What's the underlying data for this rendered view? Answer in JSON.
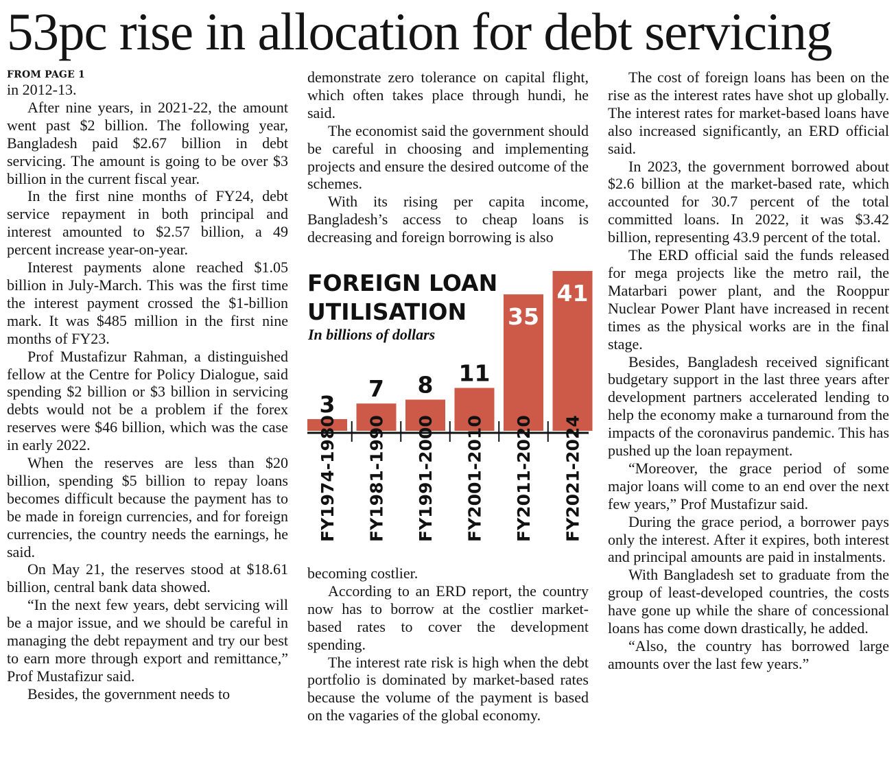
{
  "headline": "53pc rise in allocation for debt servicing",
  "kicker": "FROM PAGE 1",
  "column1": [
    "in 2012-13.",
    "After nine years, in 2021-22, the amount went past $2 billion. The following year, Bangladesh paid $2.67 billion in debt servicing. The amount is going to be over $3 billion in the current fiscal year.",
    "In the first nine months of FY24, debt service repayment in both principal and interest amounted to $2.57 billion, a 49 percent increase year-on-year.",
    "Interest payments alone reached $1.05 billion in July-March. This was the first time the interest payment crossed the $1-billion mark. It was $485 million in the first nine months of FY23.",
    "Prof Mustafizur Rahman, a distinguished fellow at the Centre for Policy Dialogue, said spending $2 billion or $3 billion in servicing debts would not be a problem if the forex reserves were $46 billion, which was the case in early 2022.",
    "When the reserves are less than $20 billion, spending $5 billion to repay loans becomes difficult because the payment has to be made in foreign currencies, and for foreign currencies, the country needs the earnings, he said.",
    "On May 21, the reserves stood at $18.61 billion, central bank data showed.",
    "“In the next few years, debt servicing will be a major issue, and we should be careful in managing the debt repayment and try our best to earn more through export and remittance,” Prof Mustafizur said.",
    "Besides, the government needs to"
  ],
  "column2_top": [
    "demonstrate zero tolerance on capital flight, which often takes place through hundi, he said.",
    "The economist said the government should be careful in choosing and implementing projects and ensure the desired outcome of the schemes.",
    "With its rising per capita income, Bangladesh’s access to cheap loans is decreasing and foreign borrowing is also"
  ],
  "column2_bottom": [
    "becoming costlier.",
    "According to an ERD report, the country now has to borrow at the costlier market-based rates to cover the development spending.",
    "The interest rate risk is high when the debt portfolio is dominated by market-based rates because the volume of the payment is based on the vagaries of the global economy."
  ],
  "column3": [
    "The cost of foreign loans has been on the rise as the interest rates have shot up globally. The interest rates for market-based loans have also increased significantly, an ERD official said.",
    "In 2023, the government borrowed about $2.6 billion at the market-based rate, which accounted for 30.7 percent of the total committed loans. In 2022, it was $3.42 billion, representing 43.9 percent of the total.",
    "The ERD official said the funds released for mega projects like the metro rail, the Matarbari power plant, and the Rooppur Nuclear Power Plant have increased in recent times as the physical works are in the final stage.",
    "Besides, Bangladesh received significant budgetary support in the last three years after development partners accelerated lending to help the economy make a turnaround from the impacts of the coronavirus pandemic. This has pushed up the loan repayment.",
    "“Moreover, the grace period of some major loans will come to an end over the next few years,” Prof Mustafizur said.",
    "During the grace period, a borrower pays only the interest. After it expires, both interest and principal amounts are paid in instalments.",
    "With Bangladesh set to graduate from the group of least-developed countries, the costs have gone up while the share of concessional loans has come down drastically, he added.",
    "“Also, the country has borrowed large amounts over the last few years.”"
  ],
  "chart_data": {
    "type": "bar",
    "title_lines": [
      "FOREIGN LOAN",
      "UTILISATION"
    ],
    "subtitle": "In billions of dollars",
    "categories": [
      "FY1974-1980",
      "FY1981-1990",
      "FY1991-2000",
      "FY2001-2010",
      "FY2011-2020",
      "FY2021-2024"
    ],
    "values": [
      3,
      7,
      8,
      11,
      35,
      41
    ],
    "value_labels": [
      "3",
      "7",
      "8",
      "11",
      "35",
      "41"
    ],
    "ylim": [
      0,
      41
    ],
    "bar_color": "#cd5a48",
    "label_color_outside": "#111111",
    "label_color_inside": "#ffffff"
  }
}
